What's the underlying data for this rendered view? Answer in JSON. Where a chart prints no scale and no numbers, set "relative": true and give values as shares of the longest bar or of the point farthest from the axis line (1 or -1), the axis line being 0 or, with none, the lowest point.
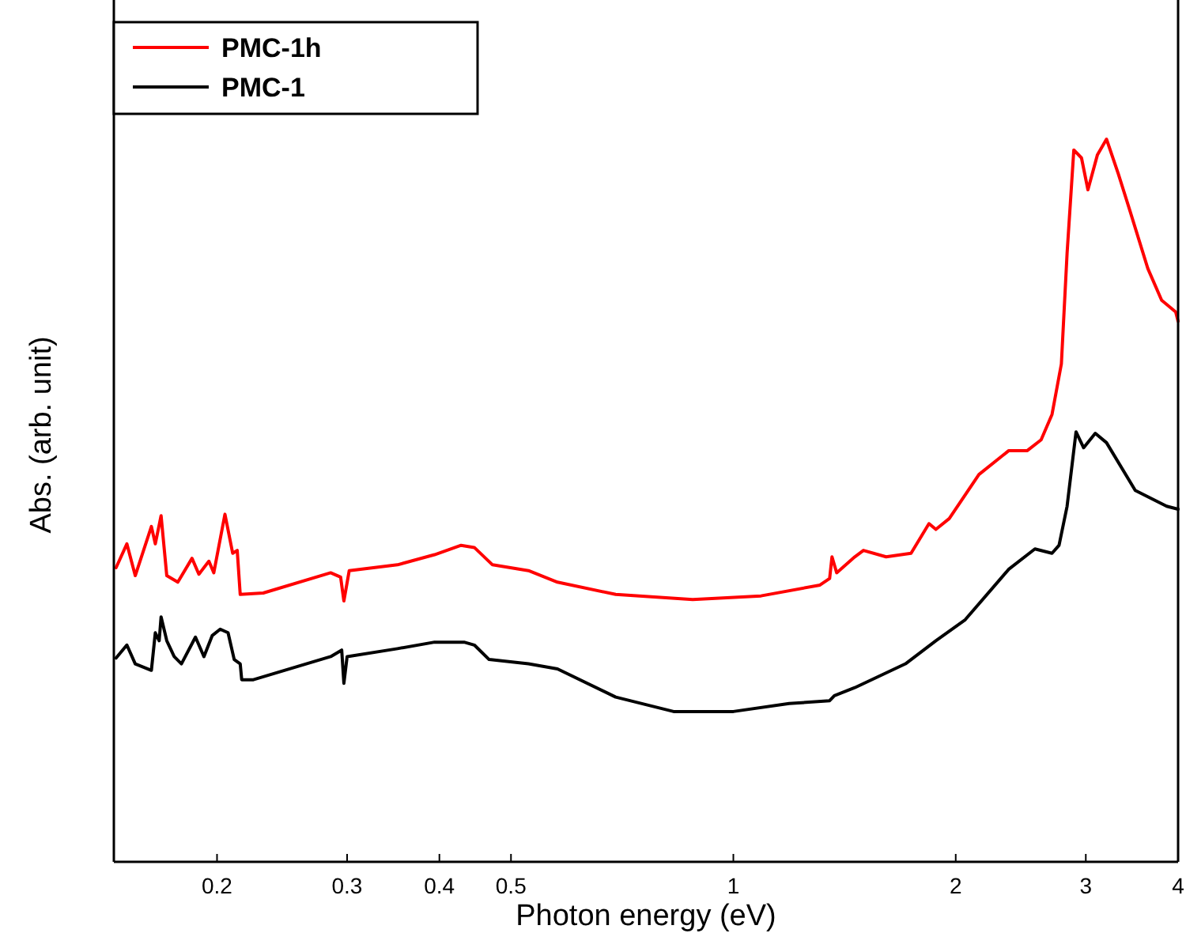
{
  "chart_data": {
    "type": "line",
    "xlabel": "Photon energy (eV)",
    "ylabel": "Abs. (arb. unit)",
    "relative": true,
    "log": "x",
    "xlim": [
      0.145,
      4
    ],
    "xticks": [
      0.2,
      0.3,
      0.4,
      0.5,
      1,
      2,
      3,
      4
    ],
    "legend": "top left",
    "series": [
      {
        "name": "PMC-1h",
        "color": "#ff0000",
        "x": [
          0.146,
          0.151,
          0.155,
          0.163,
          0.165,
          0.168,
          0.171,
          0.177,
          0.185,
          0.189,
          0.195,
          0.198,
          0.205,
          0.21,
          0.213,
          0.215,
          0.231,
          0.285,
          0.294,
          0.297,
          0.302,
          0.351,
          0.394,
          0.428,
          0.446,
          0.472,
          0.528,
          0.578,
          0.693,
          0.881,
          1.09,
          1.31,
          1.35,
          1.36,
          1.38,
          1.46,
          1.5,
          1.61,
          1.74,
          1.84,
          1.88,
          1.96,
          2.15,
          2.36,
          2.5,
          2.61,
          2.7,
          2.78,
          2.83,
          2.89,
          2.96,
          3.02,
          3.11,
          3.2,
          3.32,
          3.44,
          3.64,
          3.8,
          3.97,
          4
        ],
        "values": [
          0.407,
          0.44,
          0.396,
          0.464,
          0.44,
          0.479,
          0.396,
          0.387,
          0.42,
          0.398,
          0.416,
          0.4,
          0.481,
          0.427,
          0.431,
          0.37,
          0.372,
          0.4,
          0.394,
          0.361,
          0.403,
          0.411,
          0.425,
          0.438,
          0.435,
          0.411,
          0.403,
          0.387,
          0.37,
          0.363,
          0.368,
          0.383,
          0.392,
          0.422,
          0.4,
          0.422,
          0.431,
          0.422,
          0.427,
          0.468,
          0.46,
          0.475,
          0.536,
          0.569,
          0.569,
          0.584,
          0.619,
          0.689,
          0.842,
          0.985,
          0.974,
          0.93,
          0.978,
          1,
          0.952,
          0.902,
          0.821,
          0.777,
          0.761,
          0.748
        ]
      },
      {
        "name": "PMC-1",
        "color": "#000000",
        "x": [
          0.146,
          0.151,
          0.155,
          0.163,
          0.165,
          0.167,
          0.168,
          0.171,
          0.175,
          0.179,
          0.187,
          0.192,
          0.197,
          0.202,
          0.207,
          0.211,
          0.215,
          0.216,
          0.224,
          0.285,
          0.295,
          0.297,
          0.3,
          0.351,
          0.394,
          0.432,
          0.446,
          0.467,
          0.528,
          0.578,
          0.693,
          0.83,
          1,
          1.19,
          1.35,
          1.37,
          1.46,
          1.71,
          1.88,
          2.06,
          2.36,
          2.56,
          2.7,
          2.76,
          2.83,
          2.91,
          2.98,
          3.09,
          3.2,
          3.5,
          3.86,
          4
        ],
        "values": [
          0.282,
          0.3,
          0.274,
          0.265,
          0.317,
          0.306,
          0.339,
          0.306,
          0.284,
          0.274,
          0.311,
          0.284,
          0.313,
          0.322,
          0.317,
          0.28,
          0.274,
          0.252,
          0.252,
          0.284,
          0.293,
          0.247,
          0.284,
          0.295,
          0.304,
          0.304,
          0.3,
          0.28,
          0.274,
          0.267,
          0.228,
          0.208,
          0.208,
          0.219,
          0.223,
          0.23,
          0.241,
          0.274,
          0.306,
          0.335,
          0.405,
          0.433,
          0.427,
          0.438,
          0.492,
          0.595,
          0.573,
          0.593,
          0.58,
          0.514,
          0.492,
          0.488
        ]
      }
    ]
  }
}
